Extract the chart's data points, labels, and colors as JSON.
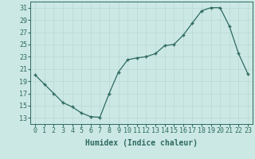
{
  "x": [
    0,
    1,
    2,
    3,
    4,
    5,
    6,
    7,
    8,
    9,
    10,
    11,
    12,
    13,
    14,
    15,
    16,
    17,
    18,
    19,
    20,
    21,
    22,
    23
  ],
  "y": [
    20.0,
    18.5,
    17.0,
    15.5,
    14.8,
    13.8,
    13.2,
    13.1,
    17.0,
    20.5,
    22.5,
    22.8,
    23.0,
    23.5,
    24.8,
    25.0,
    26.5,
    28.5,
    30.5,
    31.0,
    31.0,
    28.0,
    23.5,
    20.2
  ],
  "xlabel": "Humidex (Indice chaleur)",
  "xlim": [
    -0.5,
    23.5
  ],
  "ylim": [
    12,
    32
  ],
  "yticks": [
    13,
    15,
    17,
    19,
    21,
    23,
    25,
    27,
    29,
    31
  ],
  "xticks": [
    0,
    1,
    2,
    3,
    4,
    5,
    6,
    7,
    8,
    9,
    10,
    11,
    12,
    13,
    14,
    15,
    16,
    17,
    18,
    19,
    20,
    21,
    22,
    23
  ],
  "line_color": "#2d6b5e",
  "marker": "+",
  "bg_color": "#cce8e4",
  "grid_color": "#b8d8d4",
  "label_fontsize": 7,
  "tick_fontsize": 6
}
